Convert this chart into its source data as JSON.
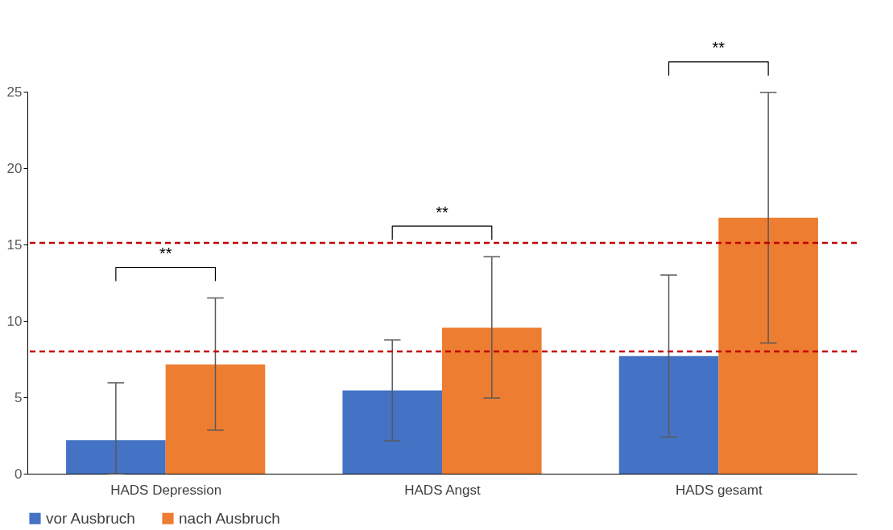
{
  "chart_data": {
    "type": "bar",
    "categories": [
      "HADS Depression",
      "HADS Angst",
      "HADS gesamt"
    ],
    "series": [
      {
        "name": "vor Ausbruch",
        "color": "#4472c4",
        "values": [
          2.2,
          5.45,
          7.7
        ],
        "errors": [
          [
            0,
            5.95
          ],
          [
            2.15,
            8.75
          ],
          [
            2.4,
            13.0
          ]
        ]
      },
      {
        "name": "nach Ausbruch",
        "color": "#ed7d31",
        "values": [
          7.15,
          9.55,
          16.75
        ],
        "errors": [
          [
            2.85,
            11.5
          ],
          [
            4.95,
            14.2
          ],
          [
            8.55,
            24.95
          ]
        ]
      }
    ],
    "ylim": [
      0,
      25
    ],
    "yticks": [
      0,
      5,
      10,
      15,
      20,
      25
    ],
    "grid": false,
    "legend": "bottom",
    "ref_lines": [
      {
        "axis": "y",
        "value": 8,
        "color": "#c00000",
        "line_style": "dashed"
      },
      {
        "axis": "y",
        "value": 15.1,
        "color": "#c00000",
        "line_style": "dashed"
      }
    ],
    "annotations": [
      "**",
      "**",
      "**"
    ]
  }
}
